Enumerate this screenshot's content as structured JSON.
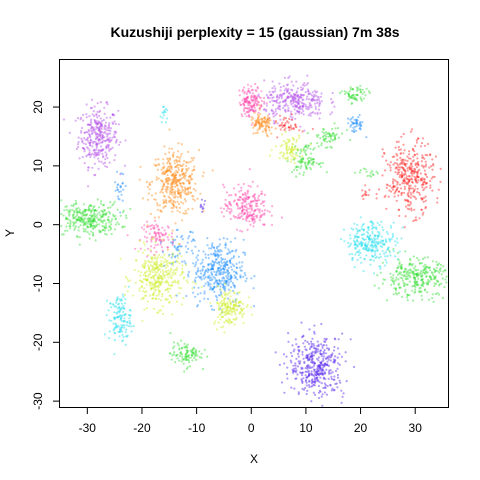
{
  "chart_data": {
    "type": "scatter",
    "title": "Kuzushiji perplexity = 15 (gaussian) 7m 38s",
    "xlabel": "X",
    "ylabel": "Y",
    "xlim": [
      -35,
      36
    ],
    "ylim": [
      -31,
      28
    ],
    "xticks": [
      -30,
      -20,
      -10,
      0,
      10,
      20,
      30
    ],
    "yticks": [
      -30,
      -20,
      -10,
      0,
      10,
      20
    ],
    "grid": false,
    "legend": "none",
    "clusters": [
      {
        "color": "#b44ee8",
        "cx": -28,
        "cy": 15,
        "sx": 1.8,
        "sy": 2.5,
        "n": 320
      },
      {
        "color": "#ff8c1a",
        "cx": -14,
        "cy": 7,
        "sx": 2.2,
        "sy": 2.8,
        "n": 380
      },
      {
        "color": "#33dd33",
        "cx": -30,
        "cy": 1,
        "sx": 3.0,
        "sy": 1.4,
        "n": 320
      },
      {
        "color": "#ff44aa",
        "cx": -17,
        "cy": -2,
        "sx": 1.5,
        "sy": 1.2,
        "n": 90
      },
      {
        "color": "#ccee22",
        "cx": -17,
        "cy": -9,
        "sx": 2.3,
        "sy": 2.5,
        "n": 330
      },
      {
        "color": "#1e8fff",
        "cx": -6,
        "cy": -8,
        "sx": 2.3,
        "sy": 2.7,
        "n": 360
      },
      {
        "color": "#ccee22",
        "cx": -4,
        "cy": -14,
        "sx": 1.5,
        "sy": 1.6,
        "n": 160
      },
      {
        "color": "#22ddee",
        "cx": -24,
        "cy": -16,
        "sx": 1.0,
        "sy": 2.0,
        "n": 130
      },
      {
        "color": "#33dd33",
        "cx": -12,
        "cy": -22,
        "sx": 1.4,
        "sy": 1.0,
        "n": 100
      },
      {
        "color": "#ff44aa",
        "cx": -1,
        "cy": 3,
        "sx": 2.0,
        "sy": 1.8,
        "n": 220
      },
      {
        "color": "#ff44aa",
        "cx": 0,
        "cy": 21,
        "sx": 1.1,
        "sy": 1.3,
        "n": 140
      },
      {
        "color": "#b44ee8",
        "cx": 8,
        "cy": 21,
        "sx": 2.8,
        "sy": 1.6,
        "n": 300
      },
      {
        "color": "#ff8c1a",
        "cx": 2,
        "cy": 17,
        "sx": 1.1,
        "sy": 1.0,
        "n": 100
      },
      {
        "color": "#ccee22",
        "cx": 7,
        "cy": 13,
        "sx": 1.3,
        "sy": 1.1,
        "n": 80
      },
      {
        "color": "#33dd33",
        "cx": 10,
        "cy": 11,
        "sx": 1.2,
        "sy": 1.2,
        "n": 90
      },
      {
        "color": "#33dd33",
        "cx": 14,
        "cy": 15,
        "sx": 1.5,
        "sy": 0.8,
        "n": 60
      },
      {
        "color": "#33dd33",
        "cx": 19,
        "cy": 22,
        "sx": 1.2,
        "sy": 0.8,
        "n": 60
      },
      {
        "color": "#1e8fff",
        "cx": 19,
        "cy": 17,
        "sx": 0.8,
        "sy": 0.7,
        "n": 45
      },
      {
        "color": "#ff2222",
        "cx": 7,
        "cy": 17,
        "sx": 1.0,
        "sy": 0.8,
        "n": 40
      },
      {
        "color": "#ff2222",
        "cx": 29,
        "cy": 8,
        "sx": 2.2,
        "sy": 3.0,
        "n": 360
      },
      {
        "color": "#22ddee",
        "cx": 22,
        "cy": -3,
        "sx": 2.3,
        "sy": 1.8,
        "n": 260
      },
      {
        "color": "#33dd33",
        "cx": 30,
        "cy": -9,
        "sx": 3.2,
        "sy": 1.6,
        "n": 300
      },
      {
        "color": "#5522ee",
        "cx": 12,
        "cy": -24,
        "sx": 2.5,
        "sy": 2.6,
        "n": 400
      },
      {
        "color": "#22ddee",
        "cx": -16,
        "cy": 19,
        "sx": 0.4,
        "sy": 0.8,
        "n": 15
      },
      {
        "color": "#1e8fff",
        "cx": -24,
        "cy": 6,
        "sx": 0.5,
        "sy": 1.6,
        "n": 25
      },
      {
        "color": "#5522ee",
        "cx": -9,
        "cy": 3,
        "sx": 0.4,
        "sy": 0.5,
        "n": 10
      },
      {
        "color": "#1e8fff",
        "cx": -13,
        "cy": -4,
        "sx": 1.4,
        "sy": 1.5,
        "n": 50
      },
      {
        "color": "#33dd33",
        "cx": 21,
        "cy": 9,
        "sx": 1.2,
        "sy": 0.4,
        "n": 15
      },
      {
        "color": "#ff2222",
        "cx": 21,
        "cy": 5,
        "sx": 0.5,
        "sy": 0.6,
        "n": 12
      }
    ]
  }
}
